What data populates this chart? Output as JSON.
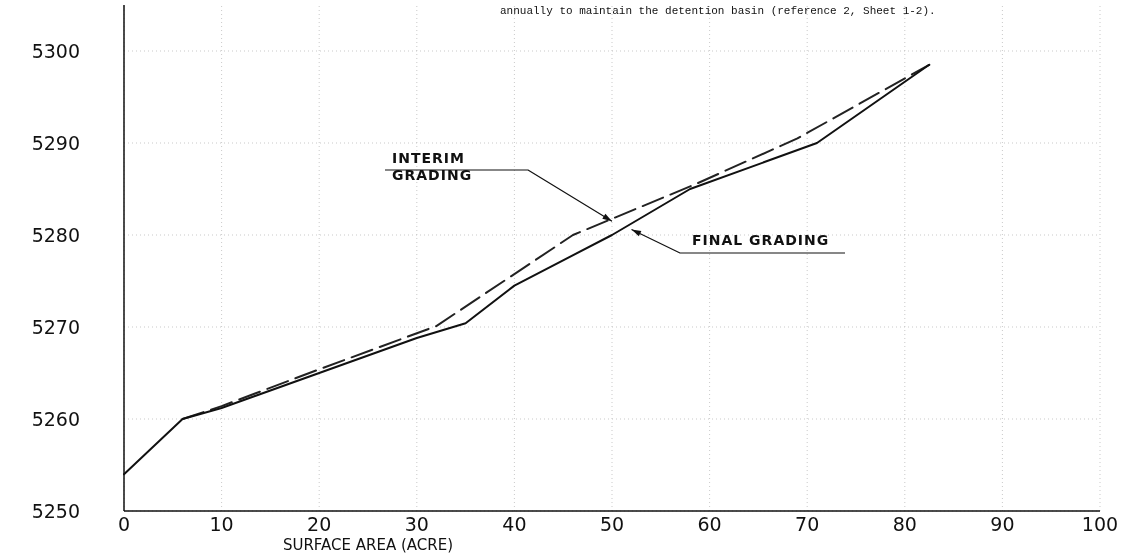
{
  "chart_data": {
    "type": "line",
    "xlabel": "SURFACE AREA (ACRE)",
    "xlim": [
      0,
      100
    ],
    "xticks": [
      0,
      10,
      20,
      30,
      40,
      50,
      60,
      70,
      80,
      90,
      100
    ],
    "ylim": [
      5250,
      5305
    ],
    "yticks": [
      5250,
      5260,
      5270,
      5280,
      5290,
      5300
    ],
    "grid": true,
    "annotations": [
      "annually to maintain the detention basin (reference 2, Sheet 1-2).",
      {
        "text": "INTERIM GRADING",
        "x": 50,
        "y": 5281.5
      },
      {
        "text": "FINAL GRADING",
        "x": 52,
        "y": 5280.6
      }
    ],
    "series": [
      {
        "color": "#222222",
        "line_style": "dashed",
        "x": [
          6,
          10,
          20,
          32,
          46,
          58.5,
          69,
          82.5
        ],
        "values": [
          5260,
          5261.4,
          5265.4,
          5270.1,
          5280,
          5285.5,
          5290.5,
          5298.5
        ]
      },
      {
        "color": "#111111",
        "line_style": "solid",
        "x": [
          0,
          6,
          10,
          20,
          30,
          35,
          40,
          50,
          58,
          71,
          82.5
        ],
        "values": [
          5254,
          5260,
          5261.2,
          5265,
          5268.8,
          5270.4,
          5274.5,
          5280,
          5285,
          5290,
          5298.5
        ]
      }
    ]
  }
}
